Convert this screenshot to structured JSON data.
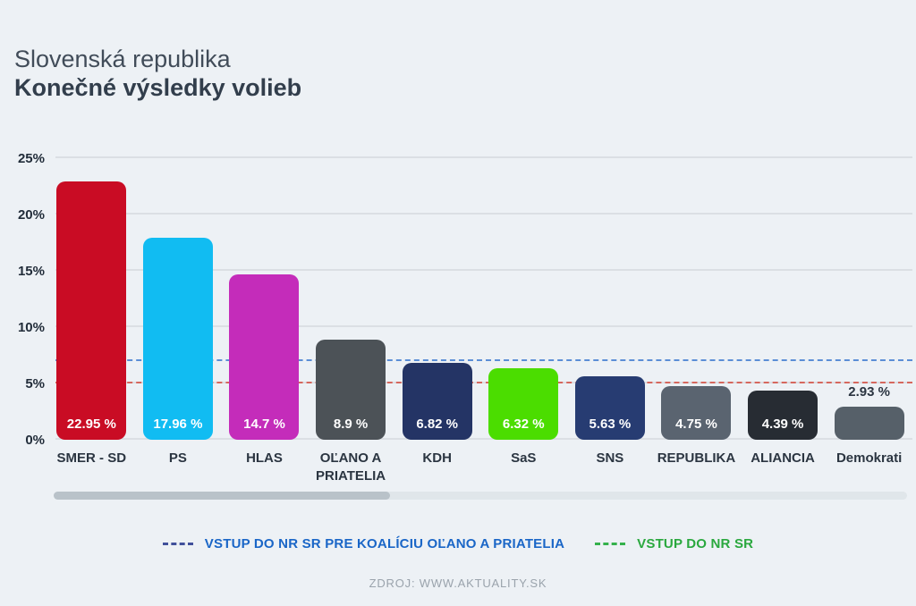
{
  "header": {
    "title": "Slovenská republika",
    "subtitle": "Konečné výsledky volieb"
  },
  "chart_data": {
    "type": "bar",
    "title": "Konečné výsledky volieb",
    "xlabel": "",
    "ylabel": "",
    "ylim": [
      0,
      25
    ],
    "grid": true,
    "legend_position": "bottom",
    "yticks": [
      {
        "value": 0,
        "label": "0%"
      },
      {
        "value": 5,
        "label": "5%"
      },
      {
        "value": 10,
        "label": "10%"
      },
      {
        "value": 15,
        "label": "15%"
      },
      {
        "value": 20,
        "label": "20%"
      },
      {
        "value": 25,
        "label": "25%"
      }
    ],
    "categories": [
      "SMER - SD",
      "PS",
      "HLAS",
      "OĽANO A PRIATELIA",
      "KDH",
      "SaS",
      "SNS",
      "REPUBLIKA",
      "ALIANCIA",
      "Demokrati"
    ],
    "values": [
      22.95,
      17.96,
      14.7,
      8.9,
      6.82,
      6.32,
      5.63,
      4.75,
      4.39,
      2.93
    ],
    "value_labels": [
      "22.95 %",
      "17.96 %",
      "14.7 %",
      "8.9 %",
      "6.82 %",
      "6.32 %",
      "5.63 %",
      "4.75 %",
      "4.39 %",
      "2.93 %"
    ],
    "bar_colors": [
      "#c90c24",
      "#11bcf2",
      "#c42cba",
      "#4c5257",
      "#243465",
      "#4bdd00",
      "#273c72",
      "#5a6470",
      "#272c33",
      "#566069"
    ],
    "label_inside": [
      true,
      true,
      true,
      true,
      true,
      true,
      true,
      true,
      true,
      false
    ],
    "thresholds": [
      {
        "value": 7,
        "line_color": "#5b8ed6",
        "meaning": "VSTUP DO NR SR PRE KOALÍCIU OĽANO A PRIATELIA"
      },
      {
        "value": 5,
        "line_color": "#d6685e",
        "meaning": "VSTUP DO NR SR"
      }
    ]
  },
  "legend": {
    "items": [
      {
        "label": "VSTUP DO NR SR PRE KOALÍCIU OĽANO A PRIATELIA",
        "dash_color": "#41509b",
        "label_color": "#1a66c7"
      },
      {
        "label": "VSTUP DO NR SR",
        "dash_color": "#35b14c",
        "label_color": "#2aa83e"
      }
    ]
  },
  "footer": {
    "source": "ZDROJ: WWW.AKTUALITY.SK"
  }
}
